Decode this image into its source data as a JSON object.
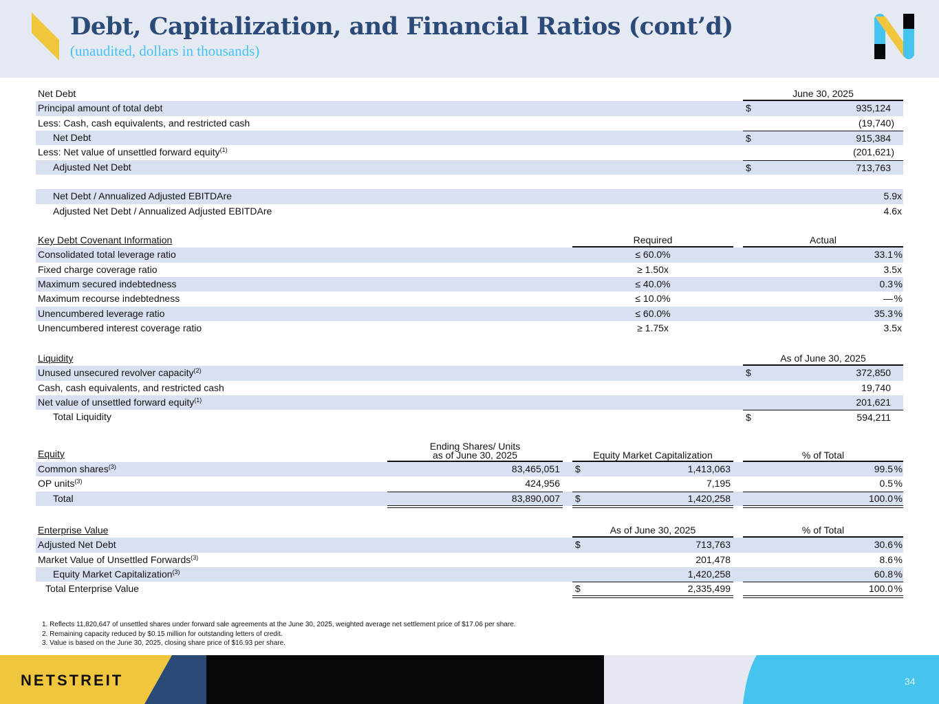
{
  "header": {
    "title": "Debt, Capitalization, and Financial Ratios (cont’d)",
    "subtitle": "(unaudited, dollars in thousands)"
  },
  "net_debt": {
    "heading": "Net Debt",
    "column": "June 30, 2025",
    "rows": [
      {
        "label": "Principal amount of total debt",
        "dollar": true,
        "value": "935,124",
        "shade": true
      },
      {
        "label": "Less: Cash, cash equivalents, and restricted cash",
        "value": "(19,740)"
      },
      {
        "label": "Net Debt",
        "indent": true,
        "dollar": true,
        "value": "915,384",
        "shade": true,
        "subtotal": true
      },
      {
        "label": "Less: Net value of unsettled forward equity",
        "note": "(1)",
        "value": "(201,621)"
      },
      {
        "label": "Adjusted Net Debt",
        "indent": true,
        "dollar": true,
        "value": "713,763",
        "shade": true,
        "subtotal": true
      },
      {
        "blank": true
      },
      {
        "label": "Net Debt / Annualized Adjusted EBITDAre",
        "indent": true,
        "value": "5.9x",
        "shade": true
      },
      {
        "label": "Adjusted Net Debt / Annualized Adjusted EBITDAre",
        "indent": true,
        "value": "4.6x"
      }
    ]
  },
  "covenants": {
    "heading": "Key Debt Covenant Information",
    "columns": [
      "Required",
      "Actual"
    ],
    "rows": [
      {
        "label": "Consolidated total leverage ratio",
        "required": "≤ 60.0%",
        "actual": "33.1",
        "suffix": "%",
        "shade": true
      },
      {
        "label": "Fixed charge coverage ratio",
        "required": "≥ 1.50x",
        "actual": "3.5x"
      },
      {
        "label": "Maximum secured indebtedness",
        "required": "≤ 40.0%",
        "actual": "0.3",
        "suffix": "%",
        "shade": true
      },
      {
        "label": "Maximum recourse indebtedness",
        "required": "≤ 10.0%",
        "actual": "—",
        "suffix": "%"
      },
      {
        "label": "Unencumbered leverage ratio",
        "required": "≤ 60.0%",
        "actual": "35.3",
        "suffix": "%",
        "shade": true
      },
      {
        "label": "Unencumbered interest coverage ratio",
        "required": "≥ 1.75x",
        "actual": "3.5x"
      }
    ]
  },
  "liquidity": {
    "heading": "Liquidity",
    "column": "As of June 30, 2025",
    "rows": [
      {
        "label": "Unused unsecured revolver capacity",
        "note": "(2)",
        "dollar": true,
        "value": "372,850",
        "shade": true
      },
      {
        "label": "Cash, cash equivalents, and restricted cash",
        "value": "19,740"
      },
      {
        "label": "Net value of unsettled forward equity",
        "note": "(1)",
        "value": "201,621",
        "shade": true
      },
      {
        "label": "Total Liquidity",
        "indent": true,
        "dollar": true,
        "value": "594,211",
        "subtotal": true
      }
    ]
  },
  "equity": {
    "heading": "Equity",
    "columns": [
      "Ending Shares/ Units",
      "as of June 30, 2025",
      "Equity Market Capitalization",
      "% of Total"
    ],
    "rows": [
      {
        "label": "Common shares",
        "note": "(3)",
        "shares": "83,465,051",
        "dollar": true,
        "cap": "1,413,063",
        "pct": "99.5",
        "shade": true
      },
      {
        "label": "OP units",
        "note": "(3)",
        "shares": "424,956",
        "cap": "7,195",
        "pct": "0.5"
      },
      {
        "label": "Total",
        "indent": true,
        "shares": "83,890,007",
        "dollar": true,
        "cap": "1,420,258",
        "pct": "100.0",
        "shade": true,
        "total": true
      }
    ]
  },
  "enterprise_value": {
    "heading": "Enterprise Value",
    "columns": [
      "As of June 30, 2025",
      "% of Total"
    ],
    "rows": [
      {
        "label": "Adjusted Net Debt",
        "dollar": true,
        "value": "713,763",
        "pct": "30.6",
        "shade": true
      },
      {
        "label": "Market Value of Unsettled Forwards",
        "note": "(3)",
        "value": "201,478",
        "pct": "8.6"
      },
      {
        "label": "Equity Market Capitalization",
        "note": "(3)",
        "indent": true,
        "value": "1,420,258",
        "pct": "60.8",
        "shade": true
      },
      {
        "label": "Total Enterprise Value",
        "half_indent": true,
        "dollar": true,
        "value": "2,335,499",
        "pct": "100.0",
        "total": true
      }
    ]
  },
  "footnotes": [
    "1. Reflects 11,820,647 of unsettled shares under forward sale agreements at the June 30, 2025, weighted average net settlement price of $17.06 per share.",
    "2. Remaining capacity reduced by $0.15 million for outstanding letters of credit.",
    "3. Value is based on the June 30, 2025, closing share price of $16.93 per share."
  ],
  "footer": {
    "brand": "NETSTREIT",
    "page_number": "34"
  },
  "colors": {
    "title": "#2b4a77",
    "subtitle": "#45c3ee",
    "row_shade": "#d9e0f1",
    "yellow": "#f0c63f",
    "cyan": "#44c4ee",
    "navy": "#2a4a75"
  }
}
